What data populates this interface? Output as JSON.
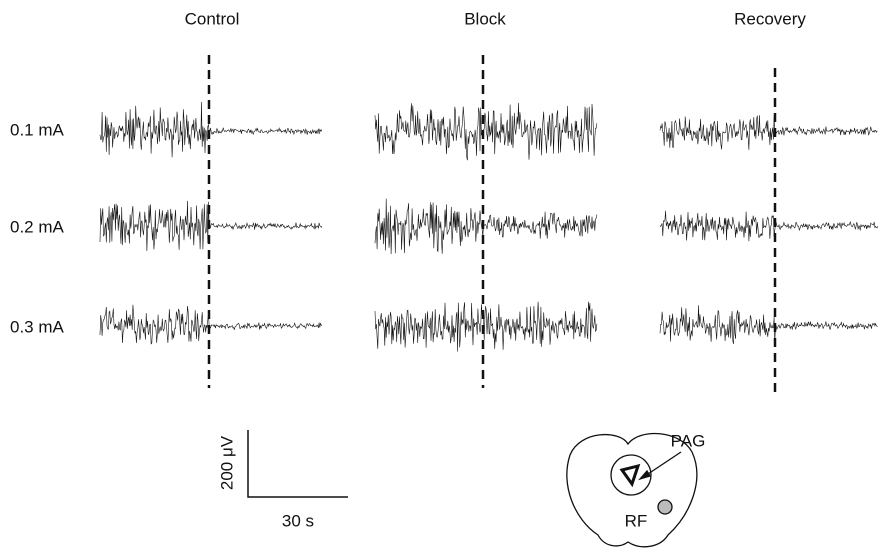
{
  "columns": [
    {
      "title": "Control"
    },
    {
      "title": "Block"
    },
    {
      "title": "Recovery"
    }
  ],
  "rows": [
    {
      "label": "0.1 mA"
    },
    {
      "label": "0.2 mA"
    },
    {
      "label": "0.3 mA"
    }
  ],
  "scale_bar": {
    "voltage": "200 μV",
    "time": "30 s"
  },
  "diagram": {
    "pag": "PAG",
    "rf": "RF"
  }
}
